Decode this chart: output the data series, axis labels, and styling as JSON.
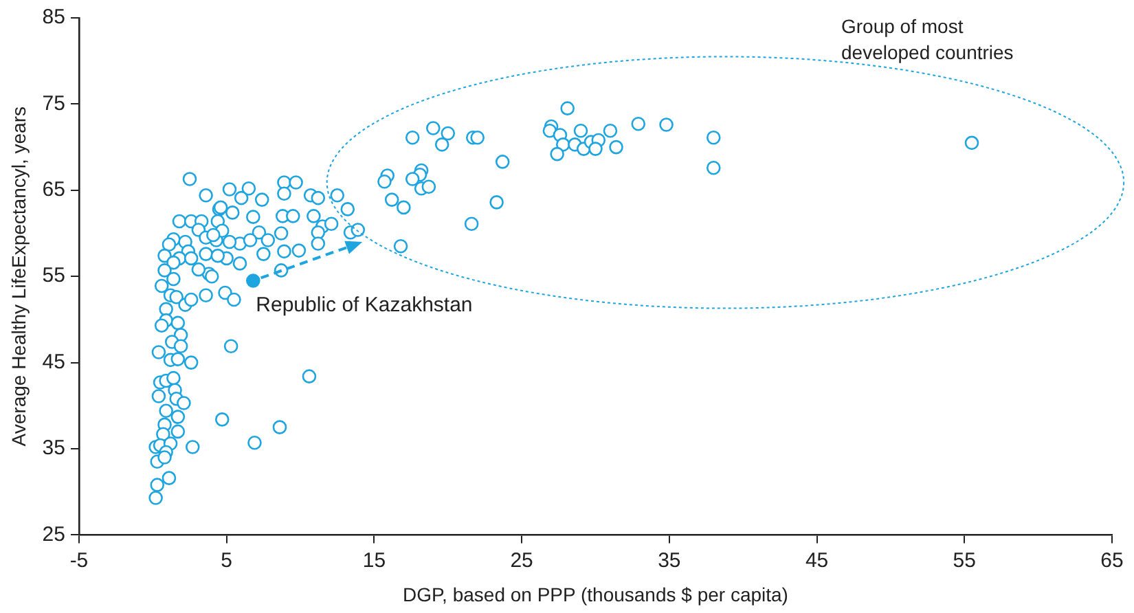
{
  "chart_data": {
    "type": "scatter",
    "xlabel": "DGP, based on PPP (thousands $ per capita)",
    "ylabel": "Average Healthy LifeExpectancyl, years",
    "annotations": [
      "Group of most developed countries",
      {
        "text": "Republic of Kazakhstan",
        "x": 6.8,
        "y": 54.5
      }
    ],
    "xlim": [
      -5,
      65
    ],
    "xticks": [
      -5,
      5,
      15,
      25,
      35,
      45,
      55,
      65
    ],
    "ylim": [
      25,
      85
    ],
    "yticks": [
      25,
      35,
      45,
      55,
      65,
      75,
      85
    ],
    "grid": false,
    "legend": false,
    "marker": "circle",
    "series": [
      {
        "color": "#1ea5e0",
        "x": [
          2.5,
          3.6,
          5.2,
          1.8,
          2.6,
          3.3,
          3.1,
          4.5,
          4.4,
          4.3,
          3.6,
          1.4,
          1.1,
          0.8,
          2.2,
          2.4,
          1.8,
          2.6,
          3.6,
          1.4,
          0.8,
          1.4,
          0.6,
          3.8,
          1.2,
          1.6,
          2.2,
          2.6,
          3.6,
          4.9,
          0.9,
          0.9,
          0.6,
          1.7,
          1.9,
          1.3,
          1.9,
          0.4,
          1.2,
          1.7,
          2.6,
          5.3,
          0.5,
          0.9,
          1.4,
          0.4,
          1.5,
          1.6,
          2.1,
          0.9,
          1.7,
          4.7,
          0.8,
          1.7,
          0.7,
          0.2,
          0.5,
          1.2,
          2.7,
          0.9,
          0.3,
          0.8,
          1.1,
          0.3,
          0.2,
          6.5,
          6.0,
          7.4,
          8.9,
          9.7,
          8.9,
          10.7,
          11.2,
          12.5,
          13.2,
          4.6,
          5.4,
          6.8,
          8.8,
          9.5,
          10.9,
          11.5,
          12.1,
          11.2,
          13.4,
          13.9,
          8.7,
          7.2,
          7.8,
          5.9,
          6.6,
          5.2,
          4.7,
          4.1,
          11.2,
          9.9,
          8.9,
          7.5,
          5.9,
          5.0,
          4.4,
          4.0,
          3.1,
          5.5,
          8.7,
          10.6,
          8.6,
          6.9,
          28.1,
          17.6,
          19.0,
          20.0,
          19.6,
          21.7,
          22.0,
          23.7,
          15.9,
          15.7,
          18.2,
          18.1,
          17.6,
          18.2,
          18.7,
          16.2,
          17.0,
          23.3,
          21.6,
          16.8,
          27.0,
          26.9,
          27.6,
          29.0,
          27.8,
          28.6,
          27.4,
          29.2,
          29.7,
          30.2,
          30.0,
          31.0,
          31.4,
          32.9,
          34.8,
          38.0,
          38.0,
          55.5
        ],
        "values": [
          66.3,
          64.4,
          65.1,
          61.4,
          61.4,
          61.4,
          60.4,
          62.8,
          61.4,
          59.2,
          59.5,
          59.3,
          58.7,
          57.4,
          59.0,
          57.9,
          57.1,
          57.1,
          57.6,
          56.6,
          55.7,
          54.7,
          53.9,
          55.3,
          52.8,
          52.6,
          51.7,
          52.3,
          52.8,
          53.1,
          51.2,
          49.9,
          49.3,
          49.6,
          48.2,
          47.4,
          46.9,
          46.2,
          45.3,
          45.4,
          45.0,
          46.9,
          42.7,
          42.9,
          43.2,
          41.1,
          41.8,
          40.8,
          40.3,
          39.4,
          38.7,
          38.4,
          37.8,
          37.0,
          36.7,
          35.2,
          35.4,
          35.6,
          35.2,
          34.6,
          33.5,
          34.0,
          31.6,
          30.8,
          29.3,
          65.2,
          64.1,
          63.9,
          65.9,
          65.9,
          64.6,
          64.4,
          64.1,
          64.4,
          62.8,
          63.0,
          62.4,
          61.9,
          62.0,
          62.0,
          62.0,
          60.8,
          61.1,
          60.1,
          60.1,
          60.4,
          60.0,
          60.1,
          59.2,
          58.8,
          59.2,
          59.0,
          60.3,
          59.8,
          58.8,
          58.0,
          57.9,
          57.6,
          56.5,
          57.1,
          57.4,
          55.0,
          55.8,
          52.3,
          55.7,
          43.4,
          37.5,
          35.7,
          74.5,
          71.1,
          72.2,
          71.6,
          70.3,
          71.1,
          71.1,
          68.3,
          66.7,
          66.0,
          67.3,
          66.8,
          66.3,
          65.2,
          65.4,
          63.9,
          63.0,
          63.6,
          61.1,
          58.5,
          72.4,
          71.9,
          71.4,
          71.9,
          70.3,
          70.3,
          69.2,
          69.8,
          70.6,
          70.8,
          69.8,
          71.9,
          70.0,
          72.7,
          72.6,
          71.1,
          67.6,
          70.5
        ]
      },
      {
        "color": "#1ea5e0",
        "x": [
          6.8
        ],
        "values": [
          54.5
        ]
      }
    ]
  }
}
